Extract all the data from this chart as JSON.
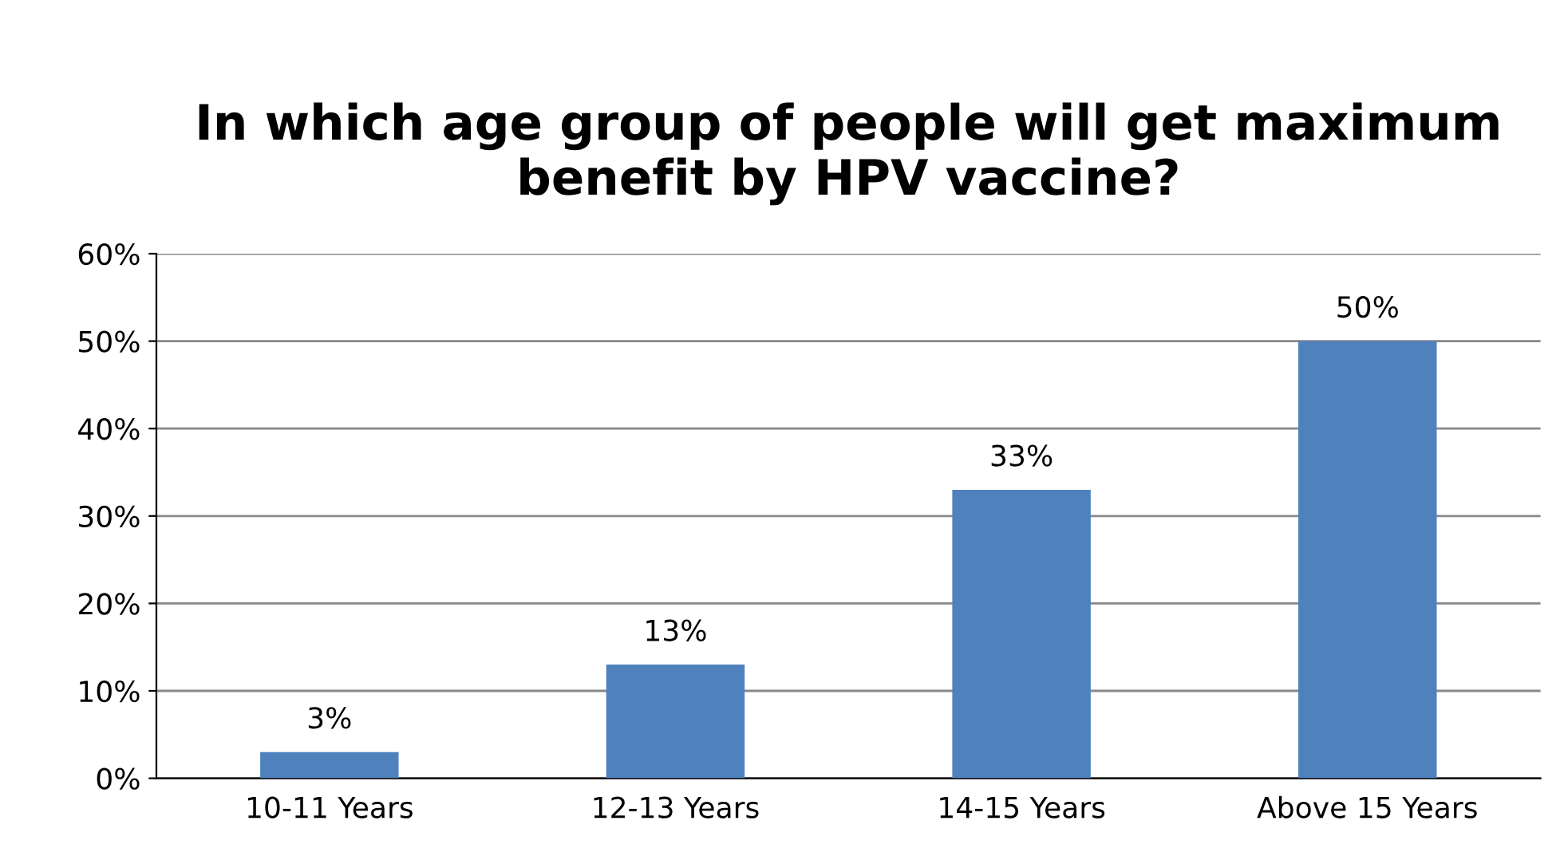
{
  "chart_data": {
    "type": "bar",
    "title": "In which age group of people will get maximum benefit by HPV vaccine?",
    "categories": [
      "10-11 Years",
      "12-13 Years",
      "14-15 Years",
      "Above 15 Years"
    ],
    "values": [
      3,
      13,
      33,
      50
    ],
    "value_labels": [
      "3%",
      "13%",
      "33%",
      "50%"
    ],
    "color": "#4f81bd",
    "ylim": [
      0,
      60
    ],
    "yticks": [
      {
        "value": 0,
        "label": "0%"
      },
      {
        "value": 10,
        "label": "10%"
      },
      {
        "value": 20,
        "label": "20%"
      },
      {
        "value": 30,
        "label": "30%"
      },
      {
        "value": 40,
        "label": "40%"
      },
      {
        "value": 50,
        "label": "50%"
      },
      {
        "value": 60,
        "label": "60%"
      }
    ],
    "grid": "y"
  }
}
